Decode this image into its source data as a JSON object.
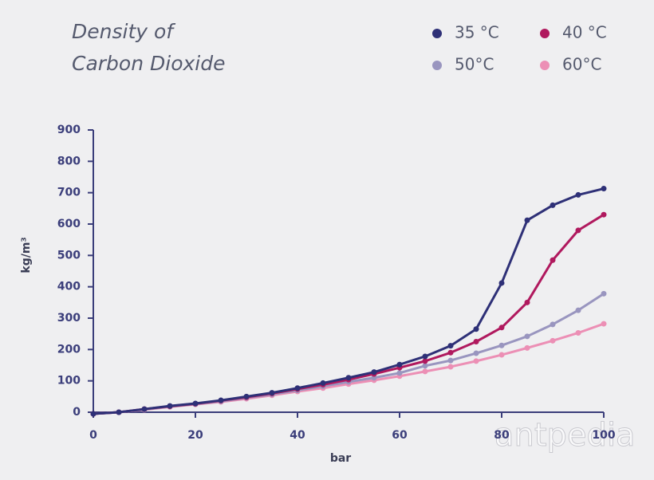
{
  "chart_data": {
    "type": "line",
    "title": [
      "Density of",
      "Carbon Dioxide"
    ],
    "x_label": "bar",
    "y_label": "kg/m³",
    "x": [
      0,
      5,
      10,
      15,
      20,
      25,
      30,
      35,
      40,
      45,
      50,
      55,
      60,
      65,
      70,
      75,
      80,
      85,
      90,
      95,
      100
    ],
    "series": [
      {
        "name": "35 °C",
        "color": "#2e3077",
        "values": [
          -5,
          0,
          10,
          20,
          28,
          38,
          50,
          62,
          77,
          93,
          110,
          128,
          152,
          178,
          212,
          265,
          412,
          612,
          660,
          693,
          713
        ]
      },
      {
        "name": "40 °C",
        "color": "#b0195e",
        "values": [
          -5,
          0,
          10,
          19,
          27,
          37,
          48,
          60,
          74,
          88,
          104,
          122,
          142,
          163,
          190,
          225,
          270,
          350,
          485,
          580,
          630
        ]
      },
      {
        "name": "50°C",
        "color": "#9995bf",
        "values": [
          -5,
          0,
          9,
          18,
          26,
          35,
          46,
          57,
          70,
          83,
          97,
          110,
          125,
          148,
          165,
          188,
          213,
          242,
          280,
          325,
          378
        ]
      },
      {
        "name": "60°C",
        "color": "#ec8fb5",
        "values": [
          -5,
          0,
          8,
          17,
          25,
          33,
          43,
          54,
          66,
          77,
          90,
          102,
          115,
          130,
          145,
          163,
          183,
          205,
          228,
          253,
          282
        ]
      }
    ],
    "xlim": [
      0,
      100
    ],
    "xticks": [
      0,
      20,
      40,
      60,
      80,
      100
    ],
    "ylim": [
      0,
      900
    ],
    "yticks": [
      0,
      100,
      200,
      300,
      400,
      500,
      600,
      700,
      800,
      900
    ],
    "axis_color": "#3a3d7a",
    "watermark": "antpedia"
  }
}
